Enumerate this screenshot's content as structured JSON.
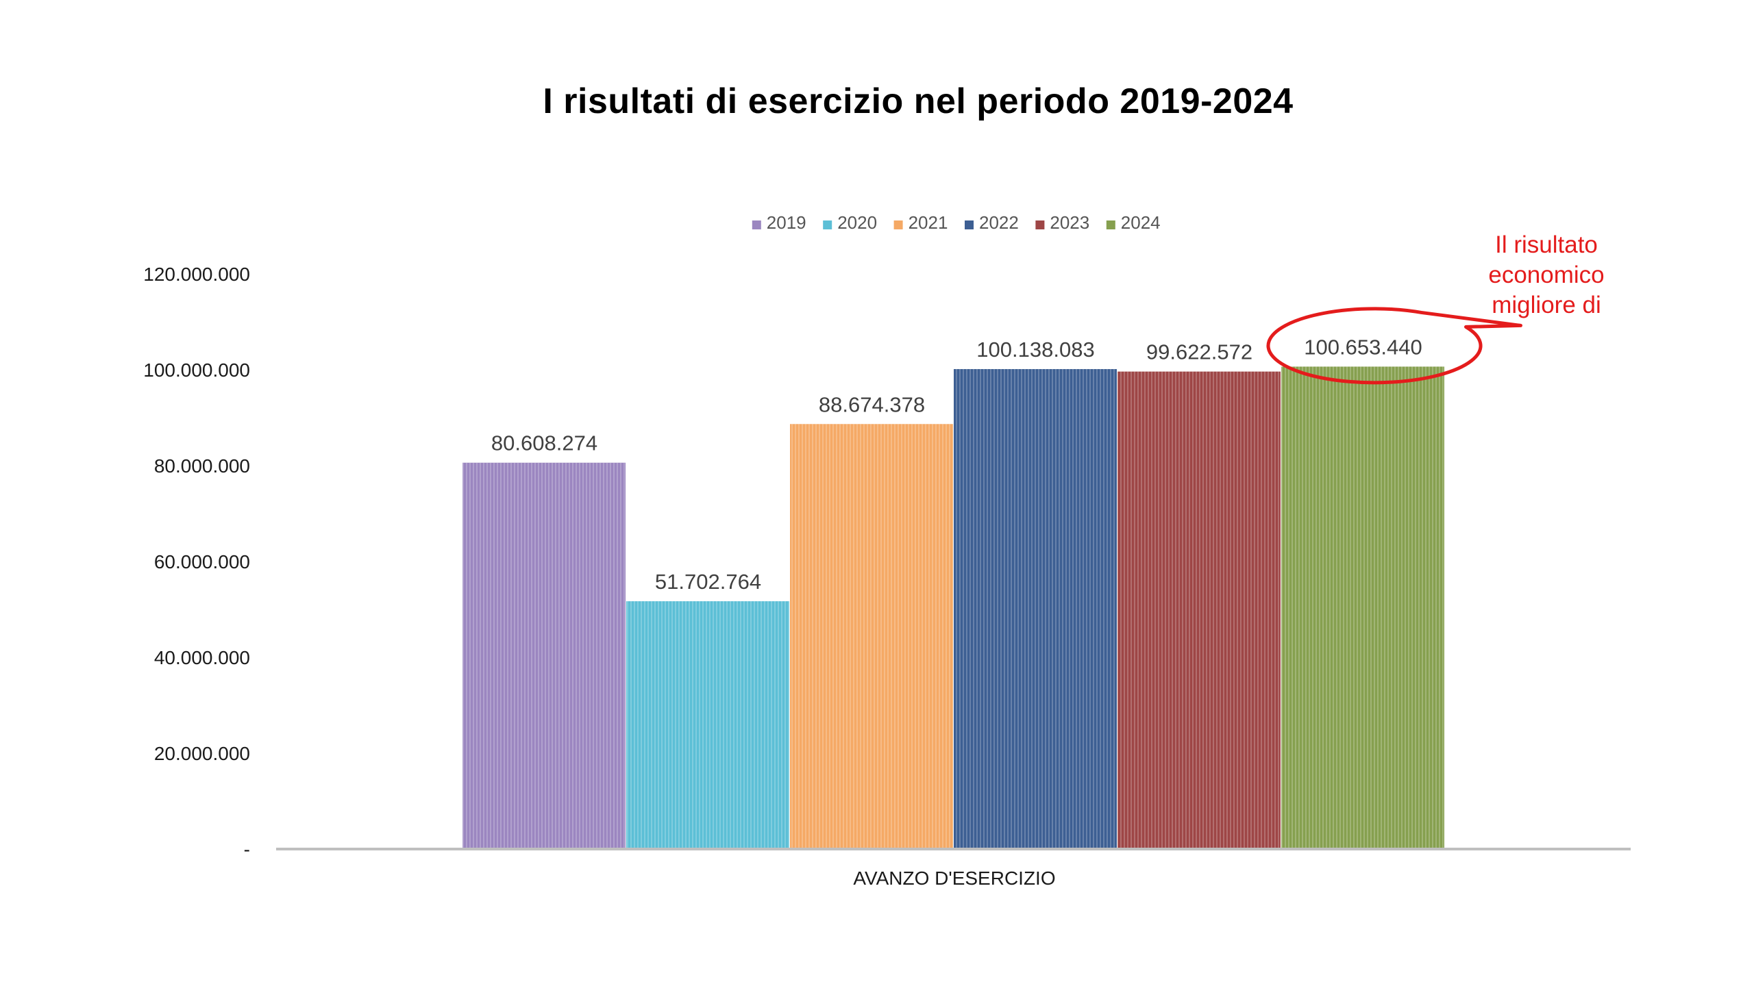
{
  "chart_data": {
    "type": "bar",
    "title": "I risultati di esercizio nel periodo 2019-2024",
    "categories": [
      "AVANZO D'ESERCIZIO"
    ],
    "series": [
      {
        "name": "2019",
        "values": [
          80608274
        ],
        "label": "80.608.274",
        "color": "#9b86c0"
      },
      {
        "name": "2020",
        "values": [
          51702764
        ],
        "label": "51.702.764",
        "color": "#5cbfd6"
      },
      {
        "name": "2021",
        "values": [
          88674378
        ],
        "label": "88.674.378",
        "color": "#f5a965"
      },
      {
        "name": "2022",
        "values": [
          100138083
        ],
        "label": "100.138.083",
        "color": "#3d5f93"
      },
      {
        "name": "2023",
        "values": [
          99622572
        ],
        "label": "99.622.572",
        "color": "#9e4646"
      },
      {
        "name": "2024",
        "values": [
          100653440
        ],
        "label": "100.653.440",
        "color": "#86a04f"
      }
    ],
    "ylim": [
      0,
      120000000
    ],
    "yticks": [
      0,
      20000000,
      40000000,
      60000000,
      80000000,
      100000000,
      120000000
    ],
    "ytick_labels": [
      "-",
      "20.000.000",
      "40.000.000",
      "60.000.000",
      "80.000.000",
      "100.000.000",
      "120.000.000"
    ],
    "xlabel": "",
    "ylabel": "",
    "grid": false,
    "legend": "top-center",
    "annotation": {
      "text_lines": [
        "Il risultato",
        "economico",
        "migliore di"
      ],
      "target_series": "2024",
      "color": "#e41c1c"
    }
  }
}
